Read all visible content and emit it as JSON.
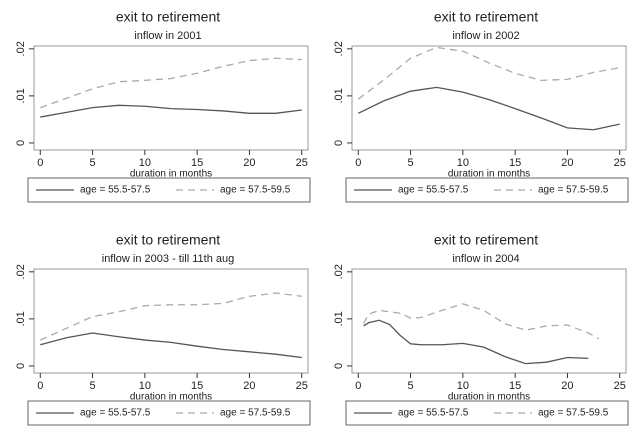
{
  "chart_data": [
    {
      "type": "line",
      "title": "exit to retirement",
      "subtitle": "inflow in 2001",
      "xlabel": "duration in months",
      "x": [
        0,
        2.5,
        5,
        7.5,
        10,
        12.5,
        15,
        17.5,
        20,
        22.5,
        25
      ],
      "series": [
        {
          "name": "age = 55.5-57.5",
          "color": "#555555",
          "linestyle": "solid",
          "values": [
            0.0055,
            0.0065,
            0.0075,
            0.008,
            0.0078,
            0.0073,
            0.0071,
            0.0068,
            0.0063,
            0.0063,
            0.007
          ]
        },
        {
          "name": "age = 57.5-59.5",
          "color": "#aaaaaa",
          "linestyle": "dashed",
          "values": [
            0.0075,
            0.0095,
            0.0115,
            0.013,
            0.0133,
            0.0137,
            0.0148,
            0.0163,
            0.0175,
            0.018,
            0.0177
          ]
        }
      ],
      "xlim": [
        -0.6,
        25.6
      ],
      "ylim": [
        -0.0015,
        0.0206
      ],
      "xticks": [
        0,
        5,
        10,
        15,
        20,
        25
      ],
      "yticks": [
        {
          "value": 0,
          "label": "0"
        },
        {
          "value": 0.01,
          "label": ".01"
        },
        {
          "value": 0.02,
          "label": ".02"
        }
      ]
    },
    {
      "type": "line",
      "title": "exit to retirement",
      "subtitle": "inflow in 2002",
      "xlabel": "duration in months",
      "x": [
        0,
        2.5,
        5,
        7.5,
        10,
        12.5,
        15,
        17.5,
        20,
        22.5,
        25
      ],
      "series": [
        {
          "name": "age = 55.5-57.5",
          "color": "#555555",
          "linestyle": "solid",
          "values": [
            0.0063,
            0.009,
            0.011,
            0.0118,
            0.0108,
            0.0092,
            0.0073,
            0.0053,
            0.0032,
            0.0028,
            0.004
          ]
        },
        {
          "name": "age = 57.5-59.5",
          "color": "#aaaaaa",
          "linestyle": "dashed",
          "values": [
            0.0093,
            0.0135,
            0.018,
            0.0203,
            0.0195,
            0.017,
            0.0148,
            0.0133,
            0.0135,
            0.015,
            0.016
          ]
        }
      ],
      "xlim": [
        -0.6,
        25.6
      ],
      "ylim": [
        -0.0015,
        0.0206
      ],
      "xticks": [
        0,
        5,
        10,
        15,
        20,
        25
      ],
      "yticks": [
        {
          "value": 0,
          "label": "0"
        },
        {
          "value": 0.01,
          "label": ".01"
        },
        {
          "value": 0.02,
          "label": ".02"
        }
      ]
    },
    {
      "type": "line",
      "title": "exit to retirement",
      "subtitle": "inflow in 2003 - till 11th aug",
      "xlabel": "duration in months",
      "x": [
        0,
        2.5,
        5,
        7.5,
        10,
        12.5,
        15,
        17.5,
        20,
        22.5,
        25
      ],
      "series": [
        {
          "name": "age = 55.5-57.5",
          "color": "#555555",
          "linestyle": "solid",
          "values": [
            0.0045,
            0.006,
            0.007,
            0.0062,
            0.0055,
            0.005,
            0.0042,
            0.0035,
            0.003,
            0.0025,
            0.0018
          ]
        },
        {
          "name": "age = 57.5-59.5",
          "color": "#aaaaaa",
          "linestyle": "dashed",
          "values": [
            0.0055,
            0.008,
            0.0105,
            0.0115,
            0.0128,
            0.013,
            0.013,
            0.0133,
            0.0148,
            0.0155,
            0.0148
          ]
        }
      ],
      "xlim": [
        -0.6,
        25.6
      ],
      "ylim": [
        -0.0015,
        0.0206
      ],
      "xticks": [
        0,
        5,
        10,
        15,
        20,
        25
      ],
      "yticks": [
        {
          "value": 0,
          "label": "0"
        },
        {
          "value": 0.01,
          "label": ".01"
        },
        {
          "value": 0.02,
          "label": ".02"
        }
      ]
    },
    {
      "type": "line",
      "title": "exit to retirement",
      "subtitle": "inflow in 2004",
      "xlabel": "duration in months",
      "x": [
        0.5,
        1,
        2,
        3,
        4,
        5,
        6,
        8,
        10,
        12,
        14,
        16,
        18,
        20,
        22,
        23
      ],
      "series": [
        {
          "name": "age = 55.5-57.5",
          "color": "#555555",
          "linestyle": "solid",
          "values": [
            0.0085,
            0.0092,
            0.0097,
            0.0088,
            0.0065,
            0.0047,
            0.0045,
            0.0045,
            0.0048,
            0.004,
            0.002,
            0.0005,
            0.0008,
            0.0018,
            0.0016,
            null
          ]
        },
        {
          "name": "age = 57.5-59.5",
          "color": "#aaaaaa",
          "linestyle": "dashed",
          "values": [
            0.009,
            0.011,
            0.0118,
            0.0115,
            0.0112,
            0.0102,
            0.0103,
            0.0118,
            0.0132,
            0.0118,
            0.009,
            0.0076,
            0.0085,
            0.0087,
            0.007,
            0.0058
          ]
        }
      ],
      "xlim": [
        -0.6,
        25.6
      ],
      "ylim": [
        -0.0015,
        0.0206
      ],
      "xticks": [
        0,
        5,
        10,
        15,
        20,
        25
      ],
      "yticks": [
        {
          "value": 0,
          "label": "0"
        },
        {
          "value": 0.01,
          "label": ".01"
        },
        {
          "value": 0.02,
          "label": ".02"
        }
      ]
    }
  ]
}
